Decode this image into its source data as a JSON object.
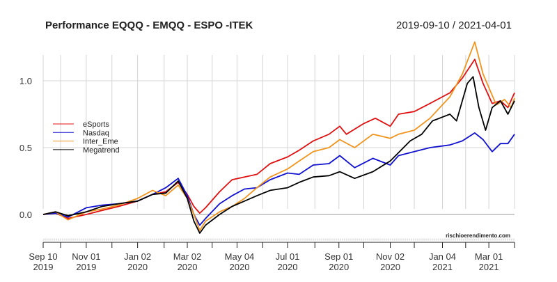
{
  "chart_data": {
    "type": "line",
    "title": "Performance EQQQ - EMQQ - ESPO -ITEK",
    "subtitle": "2019-09-10 / 2021-04-01",
    "watermark": "rischioerendimento.com",
    "xlabel": "",
    "ylabel": "",
    "xlim": [
      "2019-09-10",
      "2021-04-01"
    ],
    "ylim": [
      -0.2,
      1.35
    ],
    "grid": true,
    "legend_position": "left",
    "y_ticks": [
      {
        "value": 0,
        "label": "0.0"
      },
      {
        "value": 0.5,
        "label": "0.5"
      },
      {
        "value": 1,
        "label": "1.0"
      }
    ],
    "x_gridlines": [
      "2019-09-10",
      "2019-10-01",
      "2019-11-01",
      "2019-12-02",
      "2020-01-02",
      "2020-02-03",
      "2020-03-02",
      "2020-04-01",
      "2020-05-01",
      "2020-06-01",
      "2020-07-01",
      "2020-08-03",
      "2020-09-01",
      "2020-10-01",
      "2020-11-02",
      "2020-12-01",
      "2021-01-04",
      "2021-02-01",
      "2021-03-01",
      "2021-04-01"
    ],
    "x_ticks": [
      {
        "date": "2019-09-10",
        "label": [
          "Sep 10",
          "2019"
        ]
      },
      {
        "date": "2019-11-01",
        "label": [
          "Nov 01",
          "2019"
        ]
      },
      {
        "date": "2020-01-02",
        "label": [
          "Jan 02",
          "2020"
        ]
      },
      {
        "date": "2020-03-02",
        "label": [
          "Mar 02",
          "2020"
        ]
      },
      {
        "date": "2020-05-04",
        "label": [
          "May 04",
          "2020"
        ]
      },
      {
        "date": "2020-07-01",
        "label": [
          "Jul 01",
          "2020"
        ]
      },
      {
        "date": "2020-09-01",
        "label": [
          "Sep 01",
          "2020"
        ]
      },
      {
        "date": "2020-11-02",
        "label": [
          "Nov 02",
          "2020"
        ]
      },
      {
        "date": "2021-01-04",
        "label": [
          "Jan 04",
          "2021"
        ]
      },
      {
        "date": "2021-03-01",
        "label": [
          "Mar 01",
          "2021"
        ]
      }
    ],
    "series": [
      {
        "name": "eSports",
        "color": "#e01010",
        "points": [
          [
            "2019-09-10",
            0
          ],
          [
            "2019-09-25",
            0.01
          ],
          [
            "2019-10-10",
            -0.03
          ],
          [
            "2019-11-01",
            0.0
          ],
          [
            "2019-11-20",
            0.03
          ],
          [
            "2019-12-10",
            0.06
          ],
          [
            "2020-01-02",
            0.1
          ],
          [
            "2020-01-20",
            0.15
          ],
          [
            "2020-02-05",
            0.17
          ],
          [
            "2020-02-20",
            0.24
          ],
          [
            "2020-03-02",
            0.15
          ],
          [
            "2020-03-10",
            0.06
          ],
          [
            "2020-03-17",
            0.01
          ],
          [
            "2020-03-24",
            0.05
          ],
          [
            "2020-04-10",
            0.17
          ],
          [
            "2020-04-25",
            0.26
          ],
          [
            "2020-05-10",
            0.28
          ],
          [
            "2020-05-25",
            0.3
          ],
          [
            "2020-06-10",
            0.38
          ],
          [
            "2020-07-01",
            0.43
          ],
          [
            "2020-07-15",
            0.48
          ],
          [
            "2020-08-01",
            0.55
          ],
          [
            "2020-08-20",
            0.6
          ],
          [
            "2020-09-02",
            0.66
          ],
          [
            "2020-09-10",
            0.6
          ],
          [
            "2020-10-01",
            0.68
          ],
          [
            "2020-10-15",
            0.72
          ],
          [
            "2020-11-02",
            0.66
          ],
          [
            "2020-11-12",
            0.75
          ],
          [
            "2020-12-01",
            0.77
          ],
          [
            "2020-12-20",
            0.83
          ],
          [
            "2021-01-13",
            0.91
          ],
          [
            "2021-01-28",
            1.02
          ],
          [
            "2021-02-12",
            1.16
          ],
          [
            "2021-02-22",
            0.98
          ],
          [
            "2021-03-05",
            0.83
          ],
          [
            "2021-03-15",
            0.85
          ],
          [
            "2021-03-24",
            0.8
          ],
          [
            "2021-04-01",
            0.91
          ]
        ]
      },
      {
        "name": "Nasdaq",
        "color": "#1010d0",
        "points": [
          [
            "2019-09-10",
            0
          ],
          [
            "2019-09-25",
            0.01
          ],
          [
            "2019-10-10",
            -0.02
          ],
          [
            "2019-11-01",
            0.05
          ],
          [
            "2019-11-20",
            0.07
          ],
          [
            "2019-12-10",
            0.08
          ],
          [
            "2020-01-02",
            0.1
          ],
          [
            "2020-01-20",
            0.15
          ],
          [
            "2020-02-05",
            0.2
          ],
          [
            "2020-02-20",
            0.27
          ],
          [
            "2020-03-02",
            0.14
          ],
          [
            "2020-03-10",
            0.0
          ],
          [
            "2020-03-17",
            -0.08
          ],
          [
            "2020-03-24",
            -0.03
          ],
          [
            "2020-04-10",
            0.08
          ],
          [
            "2020-04-25",
            0.14
          ],
          [
            "2020-05-10",
            0.19
          ],
          [
            "2020-05-25",
            0.2
          ],
          [
            "2020-06-10",
            0.26
          ],
          [
            "2020-07-01",
            0.31
          ],
          [
            "2020-07-15",
            0.3
          ],
          [
            "2020-08-01",
            0.37
          ],
          [
            "2020-08-20",
            0.38
          ],
          [
            "2020-09-02",
            0.44
          ],
          [
            "2020-09-20",
            0.35
          ],
          [
            "2020-10-12",
            0.42
          ],
          [
            "2020-11-02",
            0.37
          ],
          [
            "2020-11-12",
            0.44
          ],
          [
            "2020-12-01",
            0.47
          ],
          [
            "2020-12-20",
            0.5
          ],
          [
            "2021-01-13",
            0.52
          ],
          [
            "2021-01-28",
            0.55
          ],
          [
            "2021-02-12",
            0.61
          ],
          [
            "2021-02-22",
            0.56
          ],
          [
            "2021-03-05",
            0.47
          ],
          [
            "2021-03-15",
            0.53
          ],
          [
            "2021-03-24",
            0.53
          ],
          [
            "2021-04-01",
            0.6
          ]
        ]
      },
      {
        "name": "Inter_Eme",
        "color": "#f0941e",
        "points": [
          [
            "2019-09-10",
            0
          ],
          [
            "2019-09-25",
            0.02
          ],
          [
            "2019-10-10",
            -0.04
          ],
          [
            "2019-11-01",
            0.02
          ],
          [
            "2019-11-20",
            0.04
          ],
          [
            "2019-12-10",
            0.07
          ],
          [
            "2020-01-02",
            0.12
          ],
          [
            "2020-01-20",
            0.18
          ],
          [
            "2020-02-05",
            0.14
          ],
          [
            "2020-02-20",
            0.22
          ],
          [
            "2020-03-02",
            0.12
          ],
          [
            "2020-03-10",
            0.0
          ],
          [
            "2020-03-17",
            -0.12
          ],
          [
            "2020-03-24",
            -0.05
          ],
          [
            "2020-04-10",
            0.02
          ],
          [
            "2020-04-25",
            0.06
          ],
          [
            "2020-05-10",
            0.12
          ],
          [
            "2020-05-25",
            0.2
          ],
          [
            "2020-06-10",
            0.28
          ],
          [
            "2020-07-01",
            0.34
          ],
          [
            "2020-07-15",
            0.4
          ],
          [
            "2020-08-01",
            0.47
          ],
          [
            "2020-08-20",
            0.5
          ],
          [
            "2020-09-02",
            0.56
          ],
          [
            "2020-09-20",
            0.5
          ],
          [
            "2020-10-12",
            0.6
          ],
          [
            "2020-11-02",
            0.57
          ],
          [
            "2020-11-12",
            0.6
          ],
          [
            "2020-12-01",
            0.63
          ],
          [
            "2020-12-20",
            0.72
          ],
          [
            "2021-01-13",
            0.88
          ],
          [
            "2021-01-28",
            1.05
          ],
          [
            "2021-02-12",
            1.29
          ],
          [
            "2021-02-22",
            1.05
          ],
          [
            "2021-03-01",
            0.95
          ],
          [
            "2021-03-10",
            0.82
          ],
          [
            "2021-03-20",
            0.86
          ],
          [
            "2021-03-28",
            0.8
          ],
          [
            "2021-04-01",
            0.87
          ]
        ]
      },
      {
        "name": "Megatrend",
        "color": "#000000",
        "points": [
          [
            "2019-09-10",
            0
          ],
          [
            "2019-09-25",
            0.02
          ],
          [
            "2019-10-10",
            -0.01
          ],
          [
            "2019-11-01",
            0.02
          ],
          [
            "2019-11-20",
            0.06
          ],
          [
            "2019-12-10",
            0.08
          ],
          [
            "2020-01-02",
            0.1
          ],
          [
            "2020-01-20",
            0.15
          ],
          [
            "2020-02-05",
            0.16
          ],
          [
            "2020-02-20",
            0.25
          ],
          [
            "2020-03-02",
            0.12
          ],
          [
            "2020-03-10",
            -0.05
          ],
          [
            "2020-03-17",
            -0.14
          ],
          [
            "2020-03-24",
            -0.08
          ],
          [
            "2020-04-10",
            0.0
          ],
          [
            "2020-04-25",
            0.06
          ],
          [
            "2020-05-10",
            0.1
          ],
          [
            "2020-05-25",
            0.14
          ],
          [
            "2020-06-10",
            0.18
          ],
          [
            "2020-07-01",
            0.2
          ],
          [
            "2020-07-15",
            0.24
          ],
          [
            "2020-08-01",
            0.28
          ],
          [
            "2020-08-20",
            0.29
          ],
          [
            "2020-09-02",
            0.32
          ],
          [
            "2020-09-20",
            0.27
          ],
          [
            "2020-10-12",
            0.32
          ],
          [
            "2020-11-02",
            0.4
          ],
          [
            "2020-11-26",
            0.55
          ],
          [
            "2020-12-10",
            0.6
          ],
          [
            "2020-12-23",
            0.7
          ],
          [
            "2021-01-13",
            0.75
          ],
          [
            "2021-01-21",
            0.7
          ],
          [
            "2021-02-03",
            0.98
          ],
          [
            "2021-02-10",
            1.03
          ],
          [
            "2021-02-17",
            0.8
          ],
          [
            "2021-02-25",
            0.63
          ],
          [
            "2021-03-05",
            0.8
          ],
          [
            "2021-03-15",
            0.85
          ],
          [
            "2021-03-24",
            0.75
          ],
          [
            "2021-04-01",
            0.85
          ]
        ]
      }
    ]
  }
}
